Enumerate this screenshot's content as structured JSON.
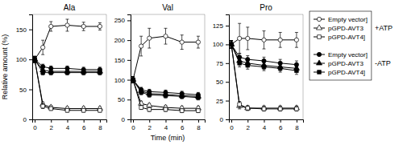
{
  "chart_data": [
    {
      "type": "line",
      "title": "Ala",
      "ylabel": "Relative amount (%)",
      "x": [
        0,
        1,
        2,
        4,
        6,
        8
      ],
      "xlim": [
        -0.3,
        8.8
      ],
      "xticks": [
        0,
        2,
        4,
        6,
        8
      ],
      "ylim": [
        0,
        175
      ],
      "yticks": [
        0,
        50,
        100,
        150
      ],
      "series": [
        {
          "name": "Empty vector]",
          "color": "#000000",
          "marker": "circle-open",
          "values": [
            100,
            120,
            155,
            157,
            155,
            155
          ],
          "yerr": [
            5,
            12,
            8,
            10,
            7,
            6
          ]
        },
        {
          "name": "pGPD-AVT3",
          "color": "#000000",
          "marker": "triangle-open",
          "values": [
            100,
            25,
            20,
            18,
            18,
            18
          ],
          "yerr": [
            5,
            4,
            3,
            3,
            3,
            3
          ]
        },
        {
          "name": "pGPD-AVT4]",
          "color": "#000000",
          "marker": "square-open",
          "values": [
            100,
            22,
            18,
            15,
            15,
            15
          ],
          "yerr": [
            5,
            4,
            3,
            3,
            3,
            3
          ]
        },
        {
          "name": "Empty vector]",
          "color": "#000000",
          "marker": "circle-filled",
          "values": [
            100,
            88,
            85,
            85,
            83,
            83
          ],
          "yerr": [
            5,
            4,
            4,
            4,
            4,
            4
          ]
        },
        {
          "name": "pGPD-AVT3",
          "color": "#000000",
          "marker": "triangle-filled",
          "values": [
            100,
            82,
            80,
            80,
            80,
            80
          ],
          "yerr": [
            5,
            4,
            4,
            4,
            4,
            4
          ]
        },
        {
          "name": "pGPD-AVT4]",
          "color": "#000000",
          "marker": "square-filled",
          "values": [
            100,
            78,
            78,
            78,
            78,
            78
          ],
          "yerr": [
            5,
            4,
            4,
            4,
            4,
            4
          ]
        }
      ]
    },
    {
      "type": "line",
      "title": "Val",
      "xlabel": "Time (min)",
      "x": [
        0,
        1,
        2,
        4,
        6,
        8
      ],
      "xlim": [
        -0.3,
        8.8
      ],
      "xticks": [
        0,
        2,
        4,
        6,
        8
      ],
      "ylim": [
        0,
        265
      ],
      "yticks": [
        0,
        50,
        100,
        150,
        200,
        250
      ],
      "series": [
        {
          "name": "Empty vector]",
          "color": "#000000",
          "marker": "circle-open",
          "values": [
            100,
            185,
            205,
            210,
            195,
            195
          ],
          "yerr": [
            8,
            25,
            25,
            20,
            18,
            15
          ]
        },
        {
          "name": "pGPD-AVT3",
          "color": "#000000",
          "marker": "triangle-open",
          "values": [
            100,
            40,
            35,
            30,
            28,
            28
          ],
          "yerr": [
            8,
            6,
            5,
            5,
            5,
            5
          ]
        },
        {
          "name": "pGPD-AVT4]",
          "color": "#000000",
          "marker": "square-open",
          "values": [
            100,
            30,
            25,
            25,
            22,
            22
          ],
          "yerr": [
            8,
            5,
            5,
            5,
            5,
            5
          ]
        },
        {
          "name": "Empty vector]",
          "color": "#000000",
          "marker": "circle-filled",
          "values": [
            100,
            75,
            70,
            68,
            65,
            62
          ],
          "yerr": [
            8,
            6,
            6,
            6,
            6,
            6
          ]
        },
        {
          "name": "pGPD-AVT3",
          "color": "#000000",
          "marker": "triangle-filled",
          "values": [
            100,
            72,
            65,
            63,
            60,
            58
          ],
          "yerr": [
            8,
            6,
            6,
            6,
            6,
            6
          ]
        },
        {
          "name": "pGPD-AVT4]",
          "color": "#000000",
          "marker": "square-filled",
          "values": [
            100,
            68,
            62,
            60,
            58,
            55
          ],
          "yerr": [
            8,
            6,
            6,
            6,
            6,
            6
          ]
        }
      ]
    },
    {
      "type": "line",
      "title": "Pro",
      "legend": "right",
      "annotations": [
        "+ATP",
        "-ATP"
      ],
      "x": [
        0,
        1,
        2,
        4,
        6,
        8
      ],
      "xlim": [
        -0.3,
        8.8
      ],
      "xticks": [
        0,
        2,
        4,
        6,
        8
      ],
      "ylim": [
        0,
        140
      ],
      "yticks": [
        0,
        25,
        50,
        75,
        100,
        125
      ],
      "series": [
        {
          "name": "Empty vector]",
          "color": "#000000",
          "marker": "circle-open",
          "values": [
            100,
            108,
            108,
            106,
            106,
            106
          ],
          "yerr": [
            5,
            20,
            15,
            12,
            10,
            10
          ]
        },
        {
          "name": "pGPD-AVT3",
          "color": "#000000",
          "marker": "triangle-open",
          "values": [
            100,
            18,
            15,
            15,
            15,
            15
          ],
          "yerr": [
            5,
            4,
            3,
            3,
            3,
            3
          ]
        },
        {
          "name": "pGPD-AVT4]",
          "color": "#000000",
          "marker": "square-open",
          "values": [
            100,
            20,
            15,
            14,
            14,
            14
          ],
          "yerr": [
            5,
            4,
            3,
            3,
            3,
            3
          ]
        },
        {
          "name": "Empty vector]",
          "color": "#000000",
          "marker": "circle-filled",
          "values": [
            100,
            83,
            80,
            78,
            75,
            73
          ],
          "yerr": [
            5,
            5,
            5,
            5,
            5,
            5
          ]
        },
        {
          "name": "pGPD-AVT3",
          "color": "#000000",
          "marker": "triangle-filled",
          "values": [
            100,
            78,
            75,
            72,
            70,
            68
          ],
          "yerr": [
            5,
            5,
            5,
            5,
            5,
            5
          ]
        },
        {
          "name": "pGPD-AVT4]",
          "color": "#000000",
          "marker": "square-filled",
          "values": [
            100,
            75,
            72,
            70,
            68,
            65
          ],
          "yerr": [
            5,
            5,
            5,
            5,
            5,
            5
          ]
        }
      ]
    }
  ]
}
